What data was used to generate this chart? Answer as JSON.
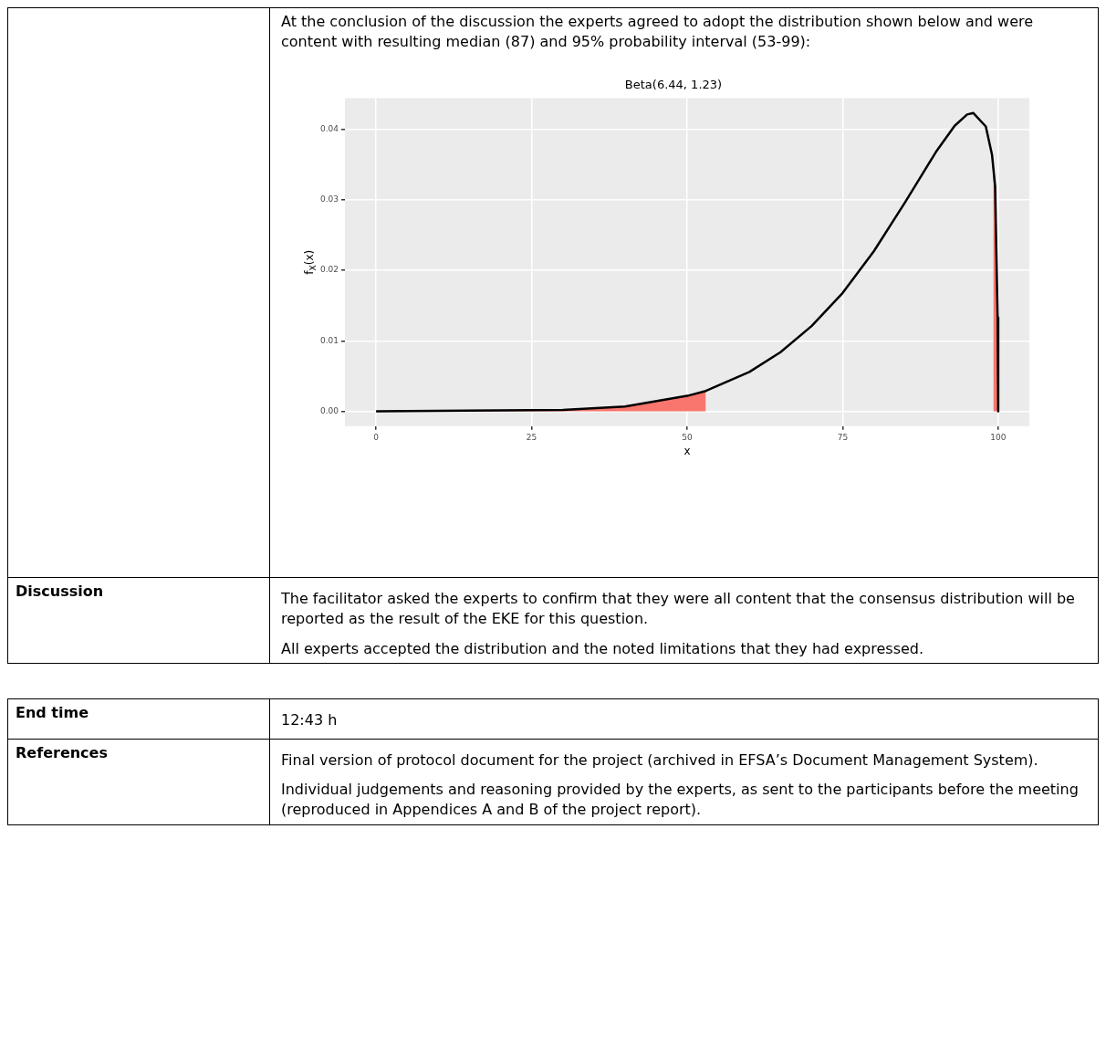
{
  "chart_data": {
    "type": "line",
    "title": "Beta(6.44, 1.23)",
    "xlabel": "x",
    "ylabel": "f$_{X}$(x)",
    "xlim": [
      -5,
      105
    ],
    "xticks": [
      0,
      25,
      50,
      75,
      100
    ],
    "ylim": [
      -0.0021,
      0.0444
    ],
    "yticks": [
      {
        "value": 0,
        "label": "0.00"
      },
      {
        "value": 0.01,
        "label": "0.01"
      },
      {
        "value": 0.02,
        "label": "0.02"
      },
      {
        "value": 0.03,
        "label": "0.03"
      },
      {
        "value": 0.04,
        "label": "0.04"
      }
    ],
    "grid": true,
    "legend": false,
    "series": [
      {
        "type": "area",
        "color": "#f8766d",
        "x": [
          0,
          30,
          40,
          50,
          53
        ],
        "values": [
          0,
          0.0002,
          0.0007,
          0.0022,
          0.0029
        ]
      },
      {
        "type": "area",
        "color": "#f8766d",
        "x": [
          99.2,
          99.5,
          99.9,
          100
        ],
        "values": [
          0.0355,
          0.0319,
          0.0133,
          0
        ]
      },
      {
        "type": "line",
        "color": "#000000",
        "x": [
          0,
          30,
          40,
          50,
          53,
          60,
          65,
          70,
          75,
          80,
          85,
          90,
          93,
          95,
          96,
          98,
          99,
          99.5,
          99.9,
          100
        ],
        "values": [
          0,
          0.0002,
          0.0007,
          0.0022,
          0.0029,
          0.0056,
          0.0084,
          0.0121,
          0.0168,
          0.0227,
          0.0296,
          0.0368,
          0.0405,
          0.0421,
          0.0423,
          0.0404,
          0.0364,
          0.0319,
          0.0133,
          0
        ]
      }
    ],
    "annotations": [
      "At the conclusion of the discussion the experts agreed to adopt the distribution shown below and were content with resulting median (87) and 95% probability interval (53-99):",
      "Discussion",
      "The facilitator asked the experts to confirm that they were all content that the consensus distribution will be reported as the result of the EKE for this question.",
      "All experts accepted the distribution and the noted limitations that they had expressed.",
      "End time",
      "12:43 h",
      "References",
      "Final version of protocol document for the project (archived in EFSA’s Document Management System).",
      "Individual judgements and reasoning provided by the experts, as sent to the participants before the meeting (reproduced in Appendices A and B of the project report)."
    ]
  }
}
